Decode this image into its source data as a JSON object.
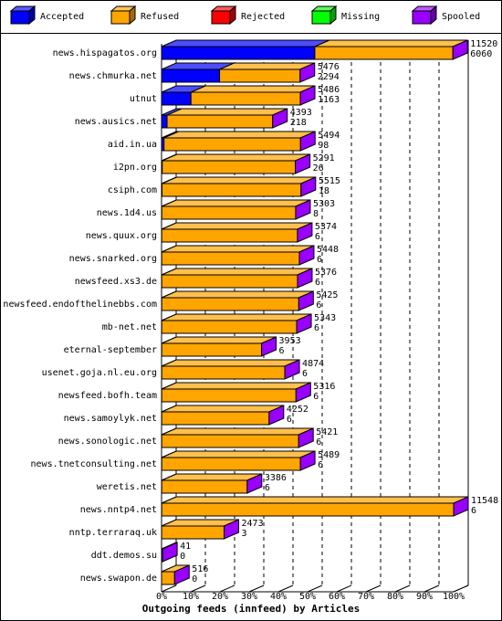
{
  "chart_data": {
    "type": "bar",
    "orientation": "horizontal",
    "stacked": true,
    "xlabel": "Outgoing feeds (innfeed) by Articles",
    "categories": [
      "news.hispagatos.org",
      "news.chmurka.net",
      "utnut",
      "news.ausics.net",
      "aid.in.ua",
      "i2pn.org",
      "csiph.com",
      "news.1d4.us",
      "news.quux.org",
      "news.snarked.org",
      "newsfeed.xs3.de",
      "newsfeed.endofthelinebbs.com",
      "mb-net.net",
      "eternal-september",
      "usenet.goja.nl.eu.org",
      "newsfeed.bofh.team",
      "news.samoylyk.net",
      "news.sonologic.net",
      "news.tnetconsulting.net",
      "weretis.net",
      "news.nntp4.net",
      "nntp.terraraq.uk",
      "ddt.demos.su",
      "news.swapon.de"
    ],
    "totals": [
      11520,
      5476,
      5486,
      4393,
      5494,
      5291,
      5515,
      5303,
      5374,
      5448,
      5376,
      5425,
      5343,
      3953,
      4874,
      5316,
      4252,
      5421,
      5489,
      3386,
      11548,
      2473,
      41,
      516
    ],
    "series": [
      {
        "name": "Accepted",
        "color": "#0000ff",
        "values": [
          6060,
          2294,
          1163,
          218,
          98,
          26,
          18,
          8,
          6,
          6,
          6,
          6,
          6,
          6,
          6,
          6,
          6,
          6,
          6,
          6,
          6,
          3,
          0,
          0
        ]
      },
      {
        "name": "Refused",
        "color": "#ffa500",
        "values": [
          5460,
          3182,
          4323,
          4175,
          5396,
          5265,
          5497,
          5295,
          5368,
          5442,
          5370,
          5419,
          5337,
          3947,
          4868,
          5310,
          4246,
          5415,
          5483,
          3380,
          11542,
          2470,
          41,
          516
        ]
      },
      {
        "name": "Rejected",
        "color": "#ff0000",
        "values": [
          0,
          0,
          0,
          0,
          0,
          0,
          0,
          0,
          0,
          0,
          0,
          0,
          0,
          0,
          0,
          0,
          0,
          0,
          0,
          0,
          0,
          0,
          0,
          0
        ]
      },
      {
        "name": "Missing",
        "color": "#00ff00",
        "values": [
          0,
          0,
          0,
          0,
          0,
          0,
          0,
          0,
          0,
          0,
          0,
          0,
          0,
          0,
          0,
          0,
          0,
          0,
          0,
          0,
          0,
          0,
          0,
          0
        ]
      },
      {
        "name": "Spooled",
        "color": "#9900ff",
        "values": [
          0,
          0,
          0,
          0,
          0,
          0,
          0,
          0,
          0,
          0,
          0,
          0,
          0,
          0,
          0,
          0,
          0,
          0,
          0,
          0,
          0,
          0,
          0,
          0
        ]
      }
    ],
    "xlim": [
      0,
      11548
    ],
    "xticks": [
      {
        "value": 0,
        "label": "0%"
      },
      {
        "value": 1154.8,
        "label": "10%"
      },
      {
        "value": 2309.6,
        "label": "20%"
      },
      {
        "value": 3464.4,
        "label": "30%"
      },
      {
        "value": 4619.2,
        "label": "40%"
      },
      {
        "value": 5774,
        "label": "50%"
      },
      {
        "value": 6928.8,
        "label": "60%"
      },
      {
        "value": 8083.6,
        "label": "70%"
      },
      {
        "value": 9238.4,
        "label": "80%"
      },
      {
        "value": 10393.2,
        "label": "90%"
      },
      {
        "value": 11548,
        "label": "100%"
      }
    ],
    "grid": true
  }
}
